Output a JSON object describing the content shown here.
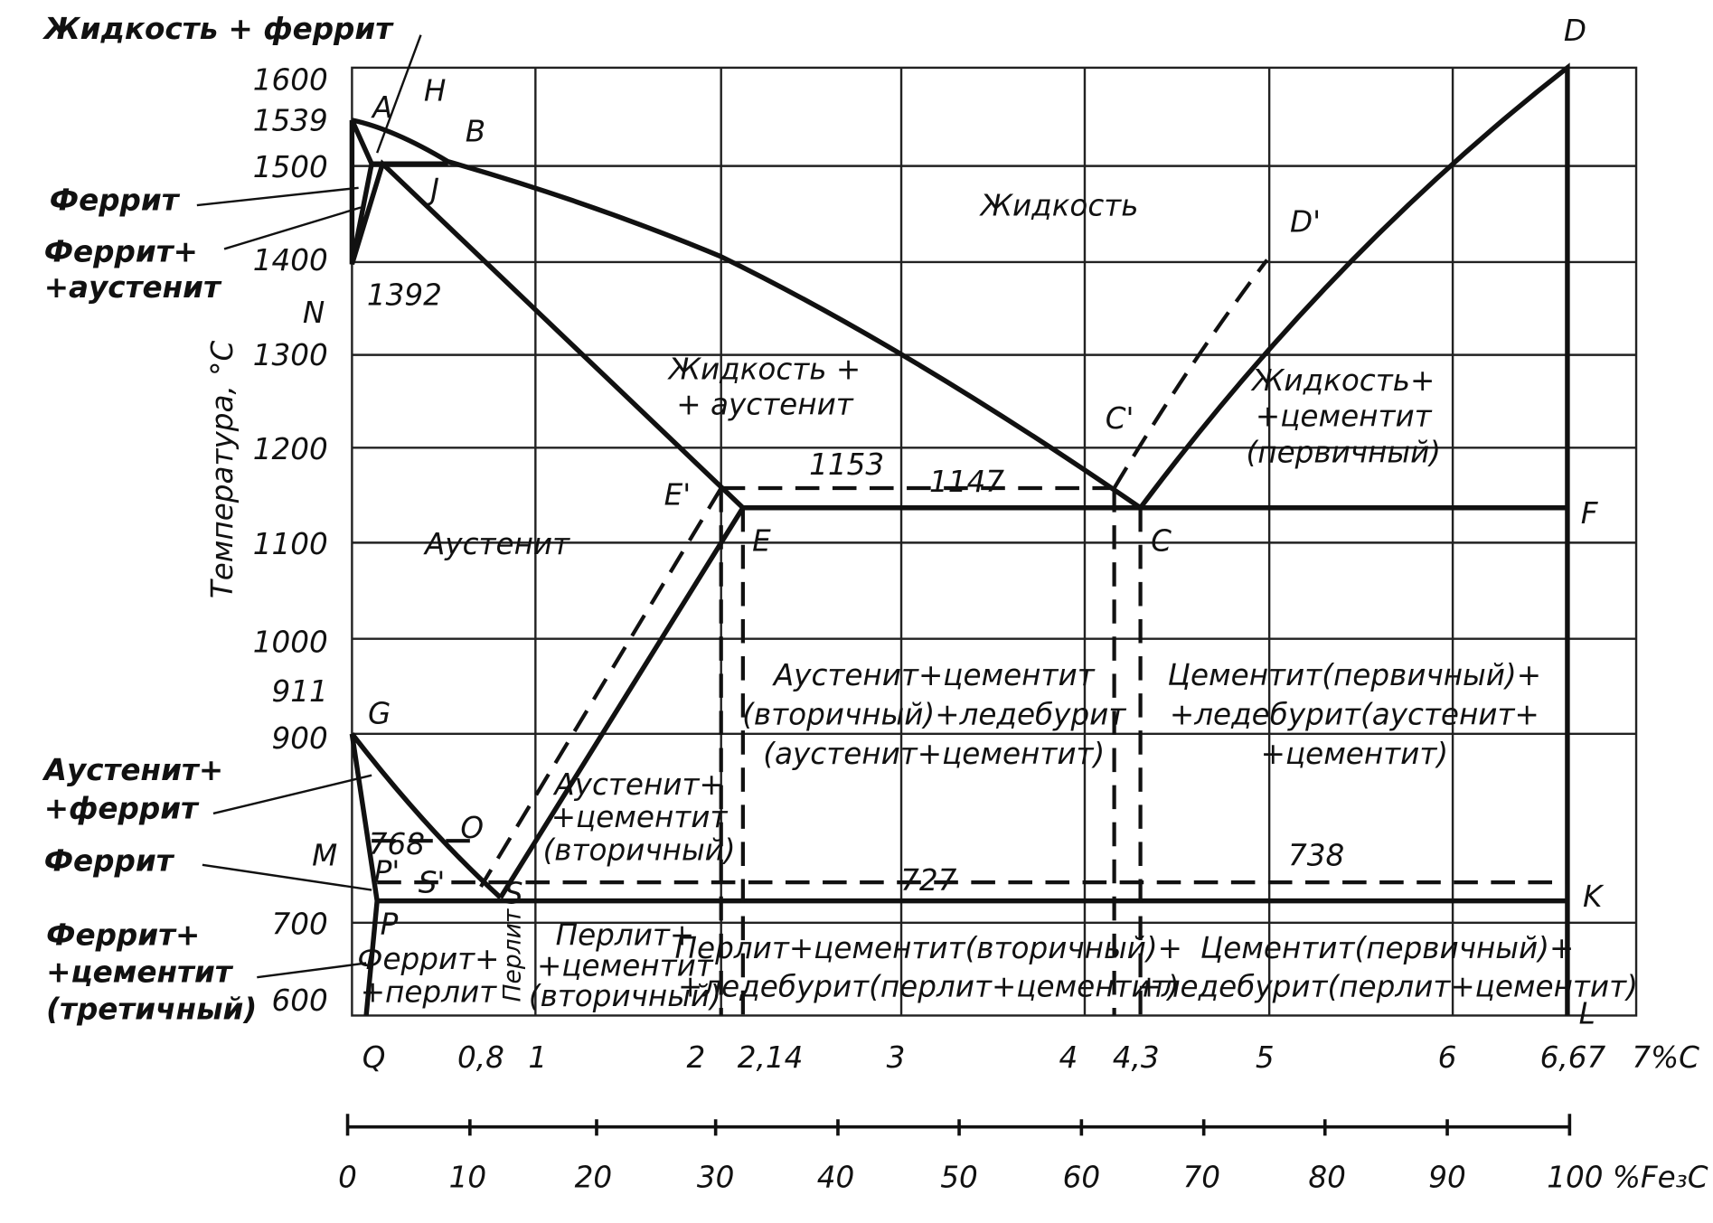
{
  "title_top": "Жидкость + феррит",
  "y_axis_label": "Температура, °С",
  "temperature_labels": [
    "1600",
    "1539",
    "1500",
    "1400",
    "1300",
    "1200",
    "1100",
    "1000",
    "911",
    "900",
    "700",
    "600"
  ],
  "carbon_labels": [
    "Q",
    "0,8",
    "1",
    "2",
    "2,14",
    "3",
    "4",
    "4,3",
    "5",
    "6",
    "6,67",
    "7%С"
  ],
  "fe3c_labels": [
    "0",
    "10",
    "20",
    "30",
    "40",
    "50",
    "60",
    "70",
    "80",
    "90",
    "100 %Fe₃C"
  ],
  "points": [
    "A",
    "H",
    "B",
    "J",
    "N",
    "D",
    "D'",
    "C'",
    "E'",
    "E",
    "C",
    "F",
    "G",
    "M",
    "O",
    "P'",
    "S'",
    "S",
    "P",
    "K",
    "L"
  ],
  "numbers": [
    "1392",
    "1153",
    "1147",
    "768",
    "727",
    "738"
  ],
  "left_labels": [
    [
      "Феррит"
    ],
    [
      "Феррит+",
      "+аустенит"
    ],
    [
      "Аустенит+",
      "+феррит"
    ],
    [
      "Феррит"
    ],
    [
      "Феррит+",
      "+цементит",
      "(третичный)"
    ]
  ],
  "regions": [
    [
      "Жидкость"
    ],
    [
      "Жидкость +",
      "+ аустенит"
    ],
    [
      "Аустенит"
    ],
    [
      "Жидкость+",
      "+цементит",
      "(первичный)"
    ],
    [
      "Аустенит+цементит",
      "(вторичный)+ледебурит",
      "(аустенит+цементит)"
    ],
    [
      "Цементит(первичный)+",
      "+ледебурит(аустенит+",
      "+цементит)"
    ],
    [
      "Аустенит+",
      "+цементит",
      "(вторичный)"
    ],
    [
      "Перлит+",
      "+цементит",
      "(вторичный)"
    ],
    [
      "Перлит+цементит(вторичный)+",
      "+ледебурит(перлит+цементит)"
    ],
    [
      "Цементит(первичный)+",
      "+ледебурит(перлит+цементит)"
    ],
    [
      "Феррит+",
      "+перлит"
    ],
    [
      "Перлит"
    ]
  ]
}
